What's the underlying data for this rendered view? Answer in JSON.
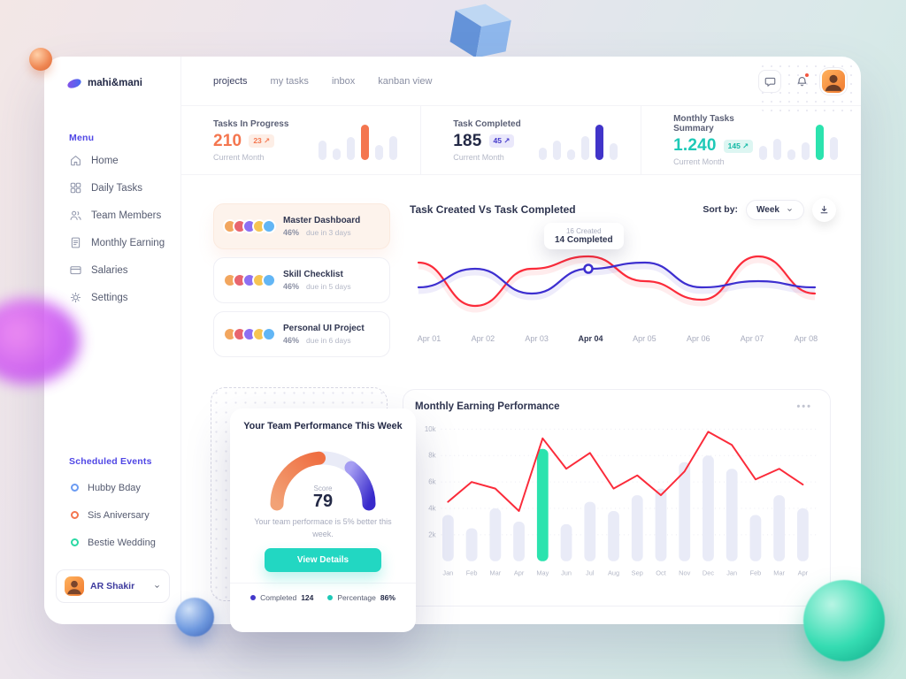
{
  "brand": {
    "name": "mahi&mani"
  },
  "topnav": {
    "tabs": [
      {
        "label": "projects"
      },
      {
        "label": "my tasks"
      },
      {
        "label": "inbox"
      },
      {
        "label": "kanban view"
      }
    ]
  },
  "sidebar": {
    "menu_label": "Menu",
    "items": [
      {
        "label": "Home",
        "icon": "home-icon"
      },
      {
        "label": "Daily Tasks",
        "icon": "grid-icon"
      },
      {
        "label": "Team Members",
        "icon": "users-icon"
      },
      {
        "label": "Monthly Earning",
        "icon": "invoice-icon"
      },
      {
        "label": "Salaries",
        "icon": "wallet-icon"
      },
      {
        "label": "Settings",
        "icon": "gear-icon"
      }
    ],
    "events_label": "Scheduled Events",
    "events": [
      {
        "label": "Hubby Bday",
        "color": "#6b9bf2"
      },
      {
        "label": "Sis Aniversary",
        "color": "#f4764f"
      },
      {
        "label": "Bestie Wedding",
        "color": "#2bd9a4"
      }
    ],
    "user": {
      "name": "AR Shakir"
    }
  },
  "stats": [
    {
      "label": "Tasks In Progress",
      "value": "210",
      "value_color": "#f4764f",
      "badge": "23 ↗",
      "badge_color": "#f4764f",
      "badge_bg": "#fdeee6",
      "sub": "Current Month",
      "accent": "#f4764f",
      "bars": [
        22,
        13,
        26,
        40,
        17,
        27
      ],
      "highlight": 3
    },
    {
      "label": "Task Completed",
      "value": "185",
      "value_color": "#232946",
      "badge": "45 ↗",
      "badge_color": "#4338ca",
      "badge_bg": "#eae8fb",
      "sub": "Current Month",
      "accent": "#4134c9",
      "bars": [
        14,
        22,
        12,
        27,
        40,
        19
      ],
      "highlight": 4
    },
    {
      "label": "Monthly Tasks Summary",
      "value": "1.240",
      "value_color": "#1ec9b7",
      "badge": "145 ↗",
      "badge_color": "#13b9a5",
      "badge_bg": "#ddf6f2",
      "sub": "Current Month",
      "accent": "#2be3ae",
      "bars": [
        16,
        24,
        12,
        20,
        40,
        26
      ],
      "highlight": 4
    }
  ],
  "avatar_colors": [
    "#f2a65e",
    "#e8656e",
    "#8d6ff2",
    "#f6c453",
    "#62b6f5"
  ],
  "projects": [
    {
      "title": "Master Dashboard",
      "percent": "46%",
      "due": "due in 3 days",
      "selected": true
    },
    {
      "title": "Skill Checklist",
      "percent": "46%",
      "due": "due in 5 days",
      "selected": false
    },
    {
      "title": "Personal UI Project",
      "percent": "46%",
      "due": "due in 6 days",
      "selected": false
    }
  ],
  "line_chart": {
    "title": "Task Created Vs Task Completed",
    "sort_label": "Sort by:",
    "sort_value": "Week",
    "tooltip": {
      "line1": "16 Created",
      "line2": "14 Completed"
    }
  },
  "earning": {
    "title": "Monthly Earning Performance",
    "menu": "•••"
  },
  "performance": {
    "title": "Your Team Performance This Week",
    "score_label": "Score",
    "score": "79",
    "description": "Your team performace is 5% better this week.",
    "button_label": "View Details",
    "legend": [
      {
        "label": "Completed",
        "value": "124",
        "color": "#4338ca"
      },
      {
        "label": "Percentage",
        "value": "86%",
        "color": "#1ec9b7"
      }
    ]
  },
  "chart_data": [
    {
      "name": "task-created-vs-completed",
      "type": "line",
      "x": [
        "Apr 01",
        "Apr 02",
        "Apr 03",
        "Apr 04",
        "Apr 05",
        "Apr 06",
        "Apr 07",
        "Apr 08"
      ],
      "series": [
        {
          "name": "Created",
          "color": "#fb2b3a",
          "values": [
            15,
            8,
            14,
            16,
            12,
            9,
            16,
            10
          ]
        },
        {
          "name": "Completed",
          "color": "#3d2fd0",
          "values": [
            11,
            14,
            10,
            14,
            15,
            11,
            12,
            11
          ]
        }
      ],
      "annotation_index": 3,
      "annotation": {
        "x": "Apr 04",
        "created": 16,
        "completed": 14
      },
      "grid": false,
      "legend_position": "none"
    },
    {
      "name": "monthly-earning-performance",
      "type": "bar+line",
      "categories": [
        "Jan",
        "Feb",
        "Mar",
        "Apr",
        "May",
        "Jun",
        "Jul",
        "Aug",
        "Sep",
        "Oct",
        "Nov",
        "Dec",
        "Jan",
        "Feb",
        "Mar",
        "Apr"
      ],
      "bars": [
        3.5,
        2.5,
        4,
        3,
        8.5,
        2.8,
        4.5,
        3.8,
        5,
        5.5,
        7.5,
        8,
        7,
        3.5,
        5,
        4
      ],
      "line": [
        4.5,
        6,
        5.5,
        3.8,
        9.3,
        7,
        8.2,
        5.5,
        6.5,
        5,
        6.8,
        9.8,
        8.8,
        6.2,
        7,
        5.8
      ],
      "unit": "k",
      "yticks": [
        "2k",
        "4k",
        "6k",
        "8k",
        "10k"
      ],
      "ylim": [
        0,
        10
      ],
      "highlight_index": 4,
      "bar_color": "#e9ebf7",
      "highlight_color": "#2be3ae",
      "line_color": "#fb2b3a",
      "grid": "dotted"
    },
    {
      "name": "team-performance-gauge",
      "type": "gauge",
      "score": 79,
      "completed": 124,
      "percentage": "86%"
    }
  ]
}
